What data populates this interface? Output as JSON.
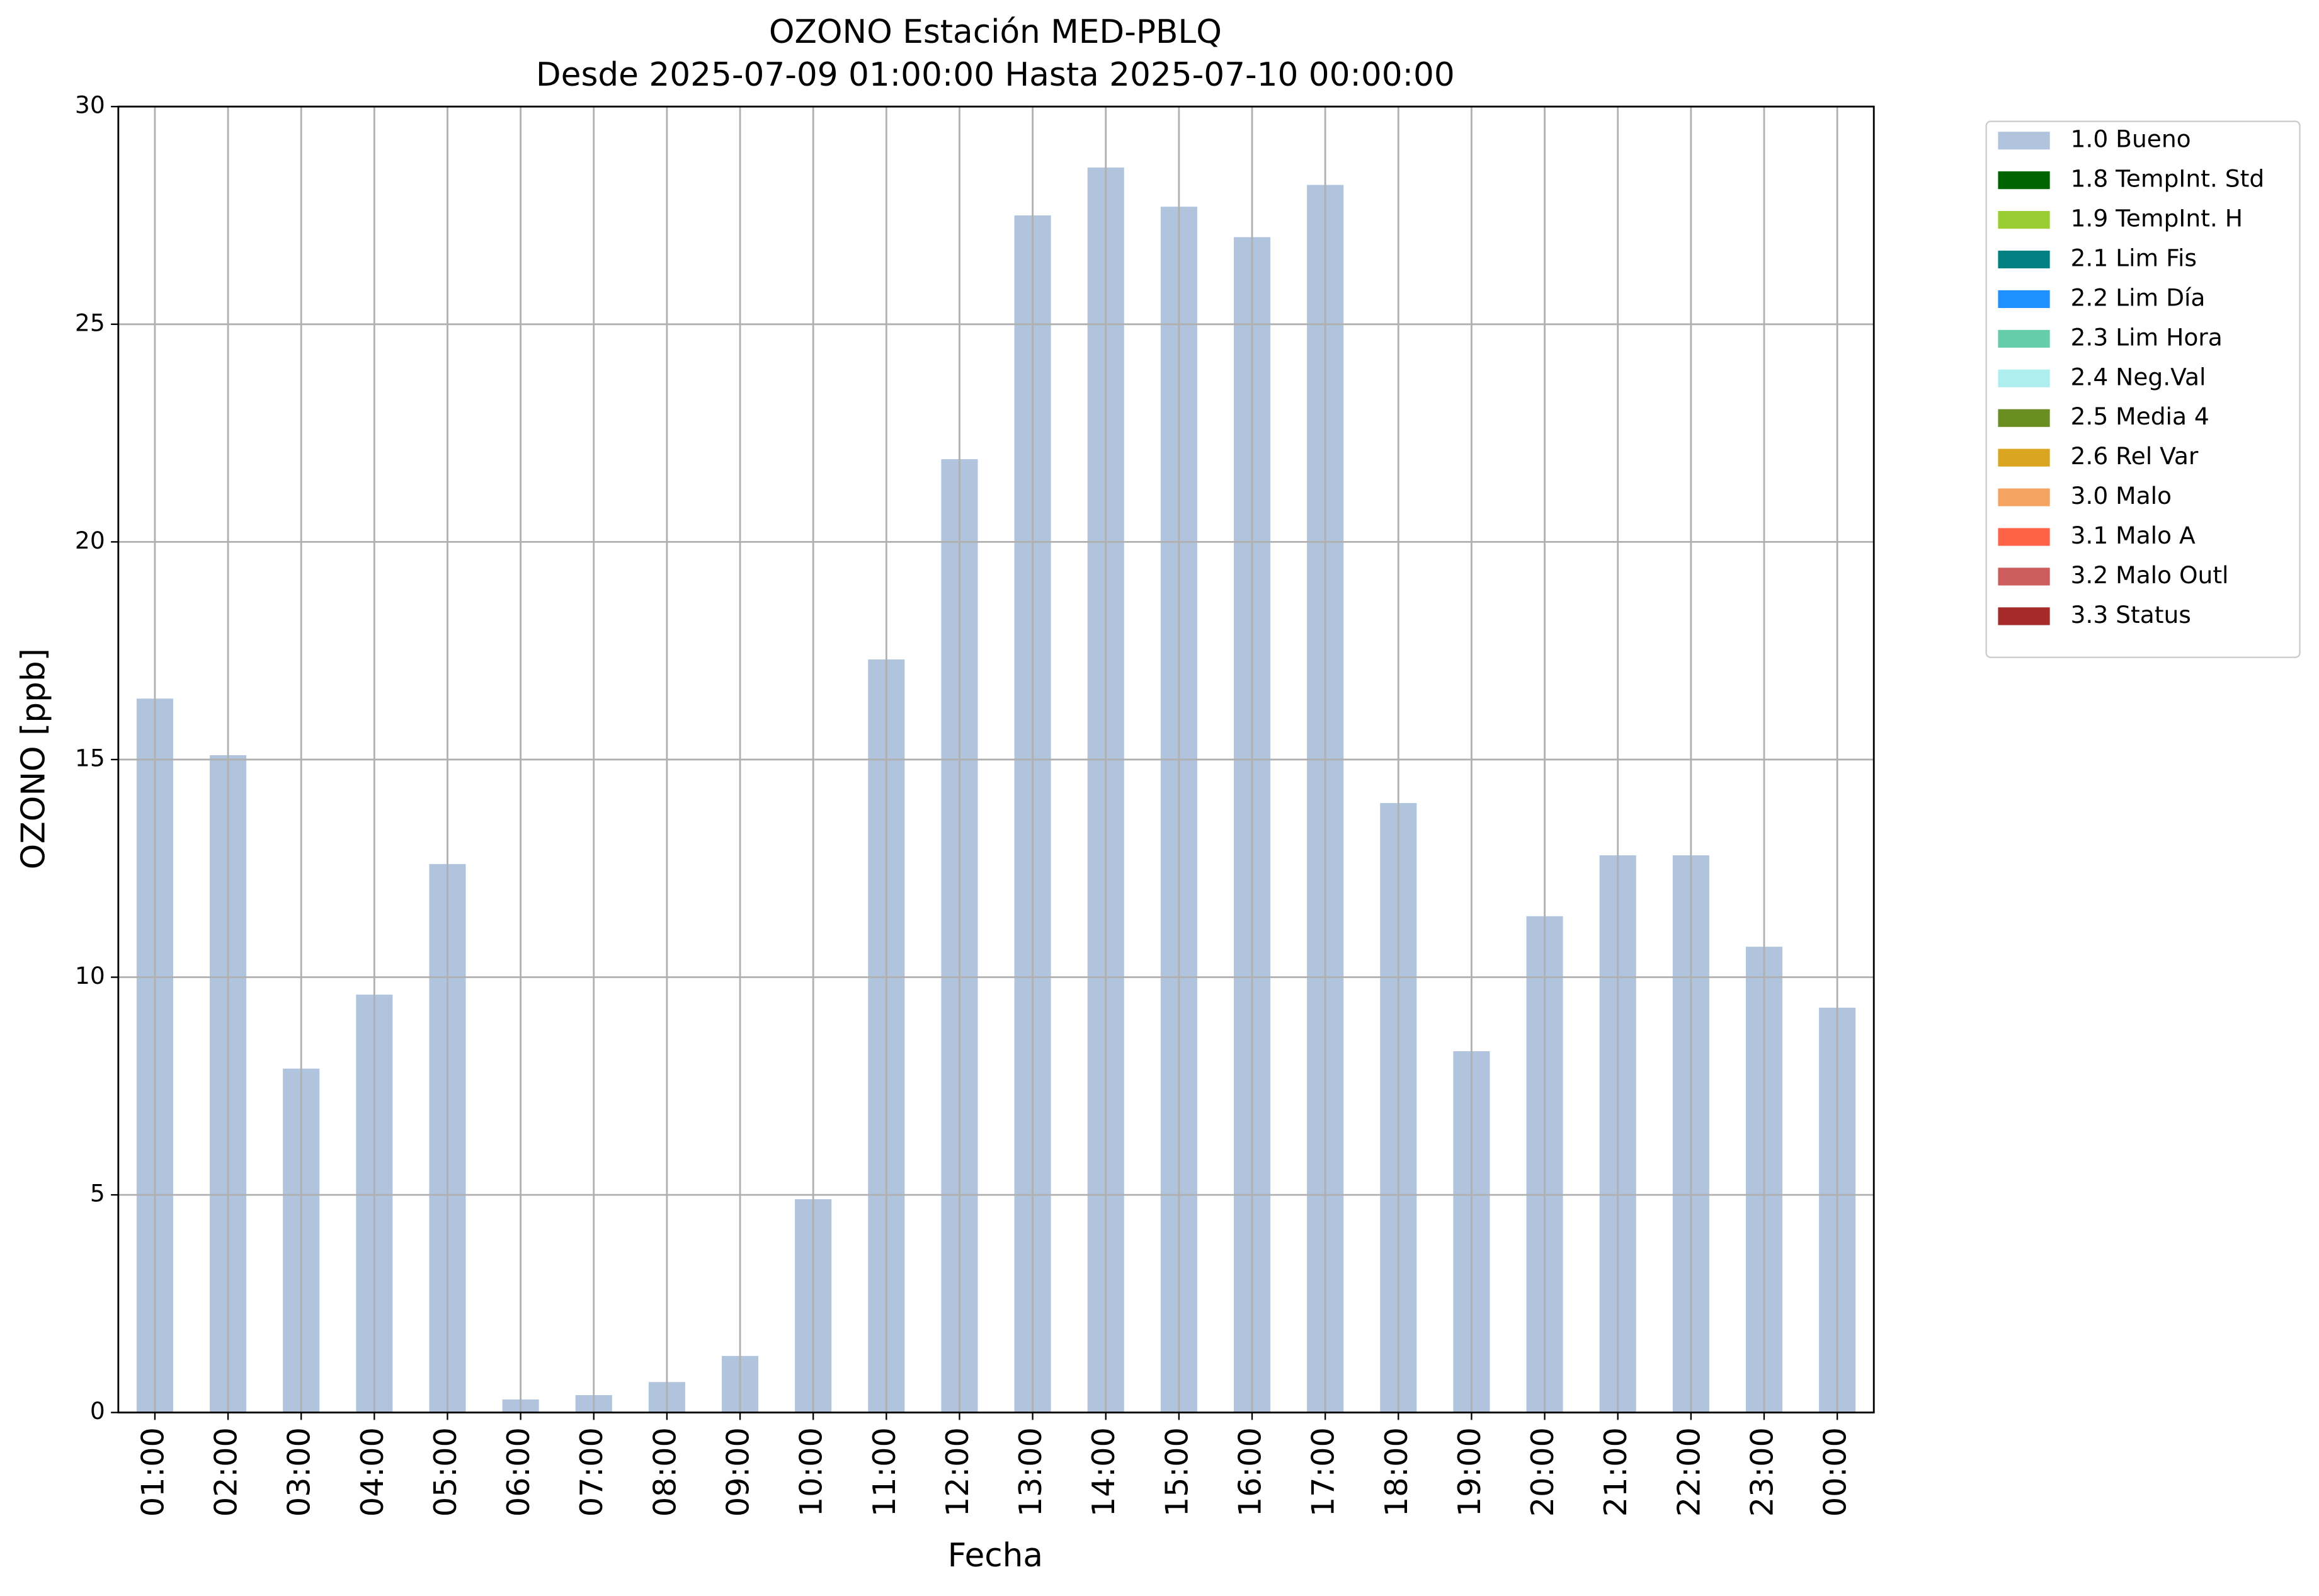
{
  "chart_data": {
    "type": "bar",
    "title": "OZONO Estación MED-PBLQ",
    "subtitle": "Desde 2025-07-09 01:00:00 Hasta 2025-07-10 00:00:00",
    "x_label": "Fecha",
    "y_label": "OZONO [ppb]",
    "categories": [
      "01:00",
      "02:00",
      "03:00",
      "04:00",
      "05:00",
      "06:00",
      "07:00",
      "08:00",
      "09:00",
      "10:00",
      "11:00",
      "12:00",
      "13:00",
      "14:00",
      "15:00",
      "16:00",
      "17:00",
      "18:00",
      "19:00",
      "20:00",
      "21:00",
      "22:00",
      "23:00",
      "00:00"
    ],
    "series": [
      {
        "name": "1.0 Bueno",
        "color": "#b0c4de",
        "values": [
          16.4,
          15.1,
          7.9,
          9.6,
          12.6,
          0.3,
          0.4,
          0.7,
          1.3,
          4.9,
          17.3,
          21.9,
          27.5,
          28.6,
          27.7,
          27.0,
          28.2,
          14.0,
          8.3,
          11.4,
          12.8,
          12.8,
          10.7,
          9.3
        ]
      },
      {
        "name": "1.8 TempInt. Std",
        "color": "#006400"
      },
      {
        "name": "1.9 TempInt. H",
        "color": "#9acd32"
      },
      {
        "name": "2.1 Lim Fis",
        "color": "#008080"
      },
      {
        "name": "2.2 Lim Día",
        "color": "#1e90ff"
      },
      {
        "name": "2.3 Lim Hora",
        "color": "#66cdaa"
      },
      {
        "name": "2.4 Neg.Val",
        "color": "#afeeee"
      },
      {
        "name": "2.5 Media 4",
        "color": "#6b8e23"
      },
      {
        "name": "2.6 Rel Var",
        "color": "#daa520"
      },
      {
        "name": "3.0 Malo",
        "color": "#f4a460"
      },
      {
        "name": "3.1 Malo A",
        "color": "#ff6347"
      },
      {
        "name": "3.2 Malo Outl",
        "color": "#cd5c5c"
      },
      {
        "name": "3.3 Status",
        "color": "#a52a2a"
      }
    ],
    "ylim": [
      0,
      30
    ],
    "yticks": [
      0,
      5,
      10,
      15,
      20,
      25,
      30
    ],
    "grid": true,
    "legend": "outside upper right"
  }
}
